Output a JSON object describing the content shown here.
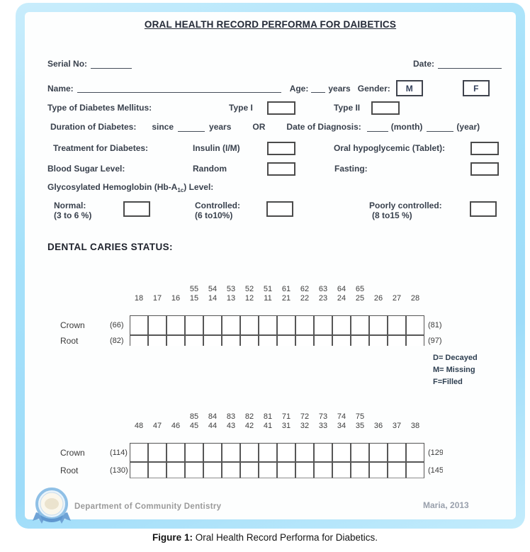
{
  "form": {
    "title": "ORAL HEALTH RECORD PERFORMA FOR DAIBETICS",
    "serial_label": "Serial No:",
    "date_label": "Date:",
    "name_label": "Name:",
    "age_label": "Age:",
    "age_years_label": "years",
    "gender_label": "Gender:",
    "gender_m": "M",
    "gender_f": "F",
    "type_label": "Type of Diabetes Mellitus:",
    "type1_label": "Type I",
    "type2_label": "Type II",
    "duration_label": "Duration of Diabetes:",
    "since_label": "since",
    "duration_years_label": "years",
    "or_label": "OR",
    "diagnosis_label": "Date of Diagnosis:",
    "month_label": "(month)",
    "year_label": "(year)",
    "treatment_label": "Treatment for Diabetes:",
    "insulin_label": "Insulin (I/M)",
    "oral_label": "Oral hypoglycemic (Tablet):",
    "blood_sugar_label": "Blood Sugar Level:",
    "random_label": "Random",
    "fasting_label": "Fasting:",
    "glyco_prefix": "Glycosylated Hemoglobin (Hb-A",
    "glyco_sub": "1c",
    "glyco_suffix": ") Level:",
    "normal_label": "Normal:",
    "normal_range": "(3 to 6 %)",
    "controlled_label": "Controlled:",
    "controlled_range": "(6 to10%)",
    "poorly_label": "Poorly controlled:",
    "poorly_range": "(8 to15 %)"
  },
  "caries": {
    "heading": "DENTAL CARIES STATUS:",
    "legend": [
      "D= Decayed",
      "M= Missing",
      "F=Filled"
    ],
    "upper_chart": {
      "deciduous": [
        "55",
        "54",
        "53",
        "52",
        "51",
        "61",
        "62",
        "63",
        "64",
        "65"
      ],
      "permanent": [
        "18",
        "17",
        "16",
        "15",
        "14",
        "13",
        "12",
        "11",
        "21",
        "22",
        "23",
        "24",
        "25",
        "26",
        "27",
        "28"
      ],
      "rows": [
        {
          "label": "Crown",
          "left": "(66)",
          "right": "(81)"
        },
        {
          "label": "Root",
          "left": "(82)",
          "right": "(97)"
        }
      ]
    },
    "lower_chart": {
      "deciduous": [
        "85",
        "84",
        "83",
        "82",
        "81",
        "71",
        "72",
        "73",
        "74",
        "75"
      ],
      "permanent": [
        "48",
        "47",
        "46",
        "45",
        "44",
        "43",
        "42",
        "41",
        "31",
        "32",
        "33",
        "34",
        "35",
        "36",
        "37",
        "38"
      ],
      "rows": [
        {
          "label": "Crown",
          "left": "(114)",
          "right": "(129"
        },
        {
          "label": "Root",
          "left": "(130)",
          "right": "(145"
        }
      ]
    }
  },
  "footer": {
    "department": "Department of Community Dentistry",
    "credit": "Maria, 2013"
  },
  "caption": {
    "prefix": "Figure 1:",
    "text": " Oral Health Record Performa for Diabetics."
  },
  "colors": {
    "frame_blue": "#a5e1fa",
    "form_text": "#39414d",
    "legend_navy": "#2d3e50",
    "footer_gray": "#9a9a9a"
  }
}
